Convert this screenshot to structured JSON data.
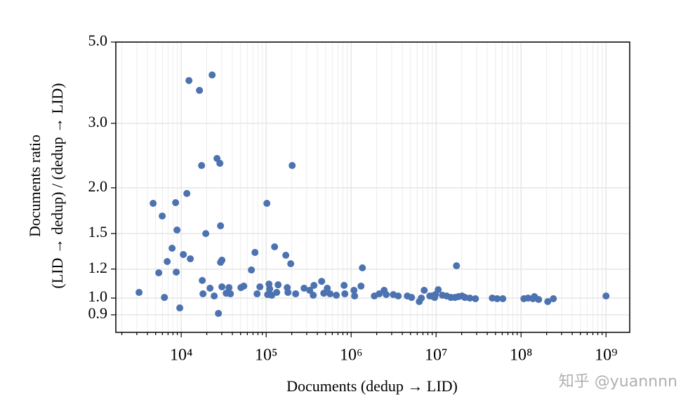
{
  "chart_data": {
    "type": "scatter",
    "xlabel": "Documents (dedup → LID)",
    "ylabel": [
      "Documents ratio",
      "(LID → dedup) / (dedup → LID)"
    ],
    "watermark": "知乎 @yuannnn",
    "color": "#4c72b0",
    "xlog": true,
    "ylog": true,
    "grid": true,
    "xlim": [
      1700,
      1900000000
    ],
    "ylim": [
      0.806,
      5.0
    ],
    "xticks": [
      {
        "value": 10000,
        "label": "10⁴"
      },
      {
        "value": 100000,
        "label": "10⁵"
      },
      {
        "value": 1000000,
        "label": "10⁶"
      },
      {
        "value": 10000000,
        "label": "10⁷"
      },
      {
        "value": 100000000,
        "label": "10⁸"
      },
      {
        "value": 1000000000,
        "label": "10⁹"
      }
    ],
    "yticks": [
      {
        "value": 0.9,
        "label": "0.9"
      },
      {
        "value": 1.0,
        "label": "1.0"
      },
      {
        "value": 1.2,
        "label": "1.2"
      },
      {
        "value": 1.5,
        "label": "1.5"
      },
      {
        "value": 2.0,
        "label": "2.0"
      },
      {
        "value": 3.0,
        "label": "3.0"
      },
      {
        "value": 5.0,
        "label": "5.0"
      }
    ],
    "x": [
      3190,
      4670,
      5440,
      5980,
      6340,
      6840,
      7810,
      8590,
      8750,
      8920,
      9620,
      10590,
      11650,
      12330,
      12800,
      16400,
      17370,
      17700,
      18030,
      19460,
      21830,
      23110,
      24450,
      26370,
      28510,
      29030,
      29030,
      30130,
      30130,
      27420,
      33810,
      36480,
      37930,
      50400,
      54450,
      67010,
      73790,
      78160,
      84330,
      101900,
      103900,
      107900,
      109900,
      116400,
      125600,
      133000,
      138100,
      170200,
      177000,
      180300,
      194500,
      202300,
      222300,
      279300,
      325300,
      358000,
      364700,
      449700,
      476300,
      523600,
      565100,
      670000,
      826000,
      843000,
      1079000,
      1099000,
      1306000,
      1356000,
      1875000,
      2143000,
      2445000,
      2589000,
      3133000,
      3581000,
      4585000,
      5140000,
      6339000,
      6702000,
      7236000,
      8433000,
      8918000,
      9622000,
      9811000,
      10590000,
      11860000,
      13300000,
      14920000,
      16710000,
      17380000,
      18380000,
      20230000,
      21830000,
      24940000,
      29040000,
      45840000,
      52360000,
      60950000,
      107900000,
      121000000,
      138100000,
      143500000,
      161000000,
      206100000,
      239900000,
      1000000000
    ],
    "values": [
      1.036,
      1.814,
      1.172,
      1.675,
      1.004,
      1.258,
      1.368,
      1.822,
      1.177,
      1.534,
      0.94,
      1.315,
      1.93,
      3.926,
      1.28,
      3.69,
      2.301,
      1.117,
      1.027,
      1.5,
      1.064,
      4.066,
      1.013,
      2.405,
      2.333,
      1.575,
      1.252,
      1.269,
      1.073,
      0.908,
      1.031,
      1.068,
      1.027,
      1.068,
      1.078,
      1.193,
      1.332,
      1.027,
      1.073,
      1.814,
      1.022,
      1.092,
      1.059,
      1.018,
      1.38,
      1.036,
      1.087,
      1.309,
      1.068,
      1.036,
      1.241,
      2.301,
      1.027,
      1.064,
      1.05,
      1.018,
      1.083,
      1.111,
      1.031,
      1.064,
      1.027,
      1.018,
      1.083,
      1.027,
      1.05,
      1.013,
      1.078,
      1.209,
      1.013,
      1.027,
      1.05,
      1.022,
      1.022,
      1.013,
      1.013,
      1.004,
      0.978,
      1.0,
      1.05,
      1.013,
      1.013,
      1.004,
      1.022,
      1.054,
      1.018,
      1.013,
      1.004,
      1.004,
      1.225,
      1.009,
      1.013,
      1.004,
      1.0,
      0.996,
      1.0,
      0.996,
      0.996,
      0.996,
      1.0,
      0.996,
      1.009,
      0.991,
      0.978,
      0.996,
      1.013
    ]
  }
}
